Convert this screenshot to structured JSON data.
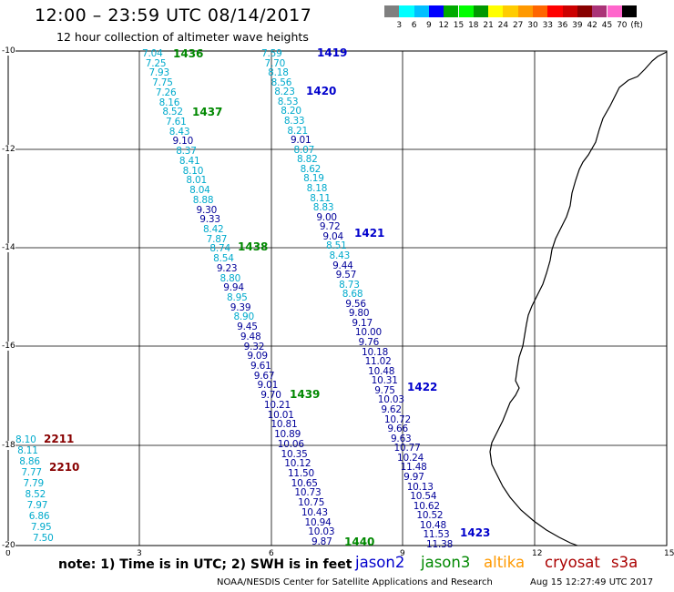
{
  "header": {
    "title": "12:00 – 23:59 UTC 08/14/2017",
    "subtitle": "12 hour collection of altimeter wave heights"
  },
  "color_scale": {
    "colors": [
      "#7f7f7f",
      "#00ffff",
      "#00bfff",
      "#0000ff",
      "#00aa00",
      "#00ff00",
      "#009900",
      "#ffff00",
      "#ffcc00",
      "#ff9900",
      "#ff6600",
      "#ff0000",
      "#cc0000",
      "#880000",
      "#aa3377",
      "#ff66cc",
      "#000000"
    ],
    "labels": [
      "3",
      "6",
      "9",
      "12",
      "15",
      "18",
      "21",
      "24",
      "27",
      "30",
      "33",
      "36",
      "39",
      "42",
      "45",
      "70",
      "(ft)"
    ]
  },
  "axes": {
    "x_ticks": [
      "0",
      "3",
      "6",
      "9",
      "12",
      "15"
    ],
    "y_ticks": [
      "-10",
      "-12",
      "-14",
      "-16",
      "-18",
      "-20"
    ]
  },
  "series_colors": {
    "jason2": "#0000cc",
    "jason3": "#008800",
    "altika": "#ff9900",
    "cryosat": "#aa0000",
    "s3a": "#aa0000",
    "swh_light": "#00aacc",
    "swh_dark": "#000099"
  },
  "passes": [
    {
      "label": "1436",
      "color": "#008800"
    },
    {
      "label": "1419",
      "color": "#0000cc"
    },
    {
      "label": "1420",
      "color": "#0000cc"
    },
    {
      "label": "1437",
      "color": "#008800"
    },
    {
      "label": "1421",
      "color": "#0000cc"
    },
    {
      "label": "1438",
      "color": "#008800"
    },
    {
      "label": "1422",
      "color": "#0000cc"
    },
    {
      "label": "1439",
      "color": "#008800"
    },
    {
      "label": "2211",
      "color": "#880000"
    },
    {
      "label": "2210",
      "color": "#880000"
    },
    {
      "label": "1423",
      "color": "#0000cc"
    },
    {
      "label": "1440",
      "color": "#008800"
    }
  ],
  "tracks": [
    {
      "id": "track-a",
      "values": [
        "7.04",
        "7.25",
        "7.93",
        "7.75",
        "7.26",
        "8.16",
        "8.52",
        "7.61",
        "8.43",
        "9.10",
        "8.37",
        "8.41",
        "8.10",
        "8.01",
        "8.04",
        "8.88",
        "9.30",
        "9.33",
        "8.42",
        "7.87",
        "8.74",
        "8.54",
        "9.23",
        "8.80",
        "9.94",
        "8.95",
        "9.39",
        "8.90",
        "9.45",
        "9.48",
        "9.32",
        "9.09",
        "9.61",
        "9.67",
        "9.01",
        "9.70",
        "10.21",
        "10.01",
        "10.81",
        "10.89",
        "10.06",
        "10.35",
        "10.12",
        "11.50",
        "10.65",
        "10.73",
        "10.75",
        "10.43",
        "10.94",
        "10.03",
        "9.87"
      ]
    },
    {
      "id": "track-b",
      "values": [
        "7.59",
        "7.70",
        "8.18",
        "8.56",
        "8.23",
        "8.53",
        "8.20",
        "8.33",
        "8.21",
        "9.01",
        "8.07",
        "8.82",
        "8.62",
        "8.19",
        "8.18",
        "8.11",
        "8.83",
        "9.00",
        "9.72",
        "9.04",
        "8.51",
        "8.43",
        "9.44",
        "9.57",
        "8.73",
        "8.68",
        "9.56",
        "9.80",
        "9.17",
        "10.00",
        "9.76",
        "10.18",
        "11.02",
        "10.48",
        "10.31",
        "9.75",
        "10.03",
        "9.62",
        "10.72",
        "9.66",
        "9.63",
        "10.77",
        "10.24",
        "11.48",
        "9.97",
        "10.13",
        "10.54",
        "10.62",
        "10.52",
        "10.48",
        "11.53",
        "11.38"
      ]
    },
    {
      "id": "track-c",
      "values": [
        "8.10",
        "8.11",
        "8.86",
        "7.77",
        "7.79",
        "8.52",
        "7.97",
        "6.86",
        "7.95",
        "7.50"
      ]
    }
  ],
  "footer": {
    "note": "note:  1) Time is in UTC;  2) SWH is in feet",
    "legend": [
      {
        "name": "jason2",
        "color": "#0000cc"
      },
      {
        "name": "jason3",
        "color": "#008800"
      },
      {
        "name": "altika",
        "color": "#ff9900"
      },
      {
        "name": "cryosat",
        "color": "#aa0000"
      },
      {
        "name": "s3a",
        "color": "#aa0000"
      }
    ],
    "credit": "NOAA/NESDIS Center for Satellite Applications and Research",
    "timestamp": "Aug 15 12:27:49 UTC 2017"
  }
}
